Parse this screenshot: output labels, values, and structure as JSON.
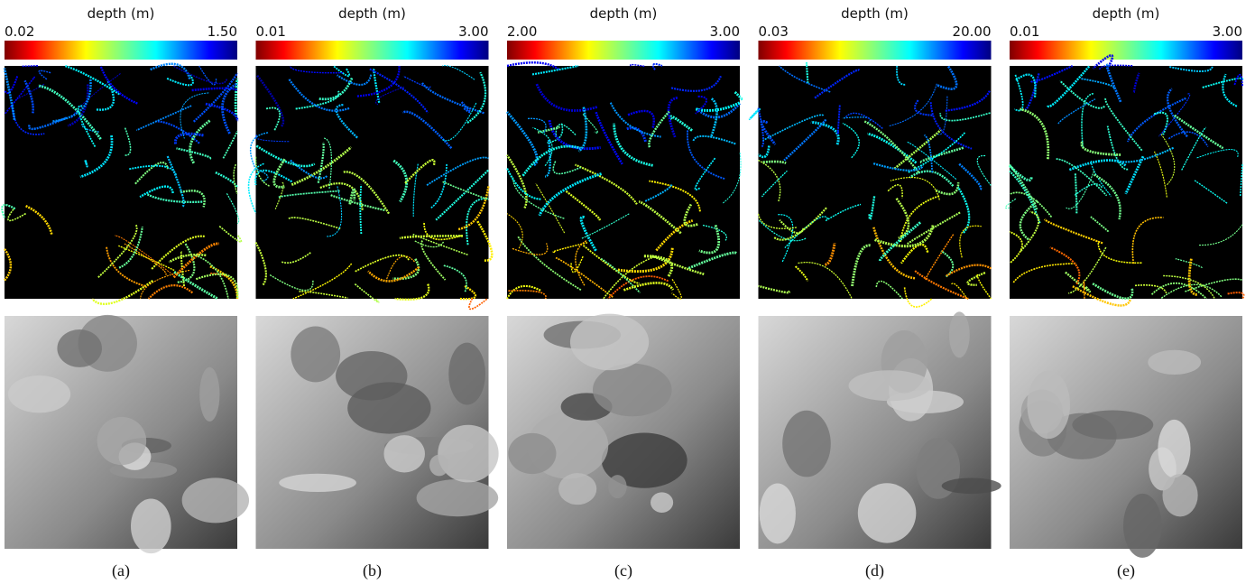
{
  "panels": [
    {
      "colorbar_label": "depth (m)",
      "min_label": "0.02",
      "max_label": "1.50",
      "caption": "(a)"
    },
    {
      "colorbar_label": "depth (m)",
      "min_label": "0.01",
      "max_label": "3.00",
      "caption": "(b)"
    },
    {
      "colorbar_label": "depth (m)",
      "min_label": "2.00",
      "max_label": "3.00",
      "caption": "(c)"
    },
    {
      "colorbar_label": "depth (m)",
      "min_label": "0.03",
      "max_label": "20.00",
      "caption": "(d)"
    },
    {
      "colorbar_label": "depth (m)",
      "min_label": "0.01",
      "max_label": "3.00",
      "caption": "(e)"
    }
  ]
}
